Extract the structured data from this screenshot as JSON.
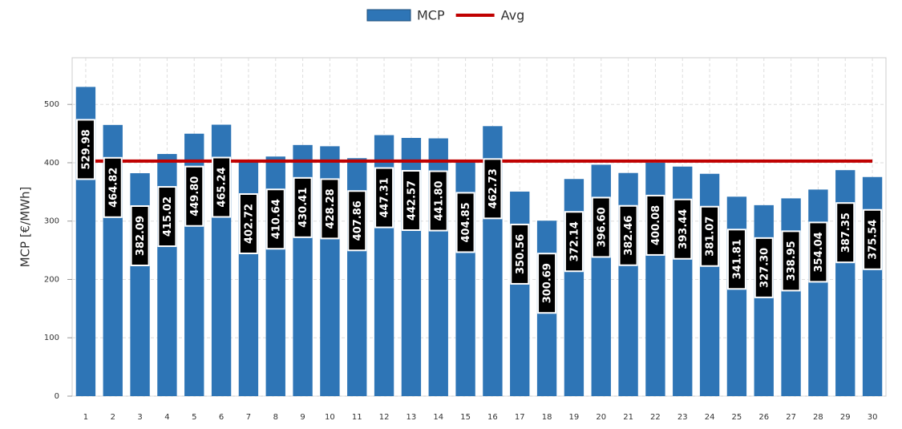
{
  "chart_data": {
    "type": "bar",
    "y_label": "MCP [€/MWh]",
    "categories": [
      "1",
      "2",
      "3",
      "4",
      "5",
      "6",
      "7",
      "8",
      "9",
      "10",
      "11",
      "12",
      "13",
      "14",
      "15",
      "16",
      "17",
      "18",
      "19",
      "20",
      "21",
      "22",
      "23",
      "24",
      "25",
      "26",
      "27",
      "28",
      "29",
      "30"
    ],
    "series": [
      {
        "name": "MCP",
        "type": "bar",
        "color": "#2e75b6",
        "values": [
          529.98,
          464.82,
          382.09,
          415.02,
          449.8,
          465.24,
          402.72,
          410.64,
          430.41,
          428.28,
          407.86,
          447.31,
          442.57,
          441.8,
          404.85,
          462.73,
          350.56,
          300.69,
          372.14,
          396.6,
          382.46,
          400.08,
          393.44,
          381.07,
          341.81,
          327.3,
          338.95,
          354.04,
          387.35,
          375.54
        ],
        "value_labels": [
          "529.98",
          "464.82",
          "382.09",
          "415.02",
          "449.80",
          "465.24",
          "402.72",
          "410.64",
          "430.41",
          "428.28",
          "407.86",
          "447.31",
          "442.57",
          "441.80",
          "404.85",
          "462.73",
          "350.56",
          "300.69",
          "372.14",
          "396.60",
          "382.46",
          "400.08",
          "393.44",
          "381.07",
          "341.81",
          "327.30",
          "338.95",
          "354.04",
          "387.35",
          "375.54"
        ]
      },
      {
        "name": "Avg",
        "type": "line",
        "color": "#c00000",
        "values": [
          402.94,
          402.94,
          402.94,
          402.94,
          402.94,
          402.94,
          402.94,
          402.94,
          402.94,
          402.94,
          402.94,
          402.94,
          402.94,
          402.94,
          402.94,
          402.94,
          402.94,
          402.94,
          402.94,
          402.94,
          402.94,
          402.94,
          402.94,
          402.94,
          402.94,
          402.94,
          402.94,
          402.94,
          402.94,
          402.94
        ]
      }
    ],
    "ylim": [
      0,
      580
    ],
    "yticks": [
      0,
      100,
      200,
      300,
      400,
      500
    ],
    "grid": true,
    "legend": "top"
  }
}
